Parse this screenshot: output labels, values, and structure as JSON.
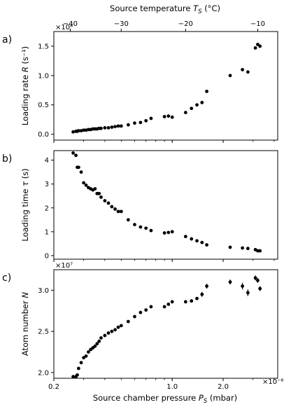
{
  "chart_data": {
    "type": "scatter",
    "x_scale": "log",
    "x_unit_exponent": "×10⁻⁶",
    "xlabel": "Source chamber pressure P_S (mbar)",
    "xlim": [
      0.2,
      4.2
    ],
    "x_tick_values": [
      0.2,
      1.0,
      2.0
    ],
    "x_tick_labels": [
      "0.2",
      "1.0",
      "2.0"
    ],
    "top_axis": {
      "label": "Source temperature T_S (°C)",
      "tick_labels": [
        "−40",
        "−30",
        "−20",
        "−10"
      ],
      "tick_positions_in_pressure": [
        0.25,
        0.5,
        1.2,
        3.2
      ]
    },
    "x_values": [
      0.26,
      0.27,
      0.275,
      0.28,
      0.29,
      0.3,
      0.31,
      0.32,
      0.33,
      0.34,
      0.35,
      0.36,
      0.37,
      0.38,
      0.4,
      0.42,
      0.44,
      0.46,
      0.48,
      0.5,
      0.55,
      0.6,
      0.65,
      0.7,
      0.75,
      0.9,
      0.95,
      1.0,
      1.2,
      1.3,
      1.4,
      1.5,
      1.6,
      2.2,
      2.6,
      2.8,
      3.1,
      3.2,
      3.3
    ],
    "panels": [
      {
        "letter": "a)",
        "ylabel": "Loading rate R (s⁻¹)",
        "y_unit_exponent": "×10⁸",
        "ylim": [
          -0.1,
          1.75
        ],
        "y_ticks": [
          0.0,
          0.5,
          1.0,
          1.5
        ],
        "y_tick_labels": [
          "0.0",
          "0.5",
          "1.0",
          "1.5"
        ],
        "values": [
          0.04,
          0.05,
          0.05,
          0.06,
          0.06,
          0.07,
          0.07,
          0.08,
          0.08,
          0.09,
          0.09,
          0.09,
          0.1,
          0.1,
          0.11,
          0.11,
          0.12,
          0.13,
          0.14,
          0.14,
          0.16,
          0.19,
          0.2,
          0.23,
          0.27,
          0.3,
          0.31,
          0.29,
          0.37,
          0.44,
          0.5,
          0.54,
          0.73,
          1.0,
          1.1,
          1.06,
          1.47,
          1.53,
          1.5
        ],
        "errors": null
      },
      {
        "letter": "b)",
        "ylabel": "Loading time τ (s)",
        "y_unit_exponent": "",
        "ylim": [
          -0.15,
          4.4
        ],
        "y_ticks": [
          0,
          1,
          2,
          3,
          4
        ],
        "y_tick_labels": [
          "0",
          "1",
          "2",
          "3",
          "4"
        ],
        "values": [
          4.3,
          4.2,
          3.7,
          3.7,
          3.5,
          3.05,
          2.95,
          2.85,
          2.8,
          2.75,
          2.8,
          2.6,
          2.6,
          2.45,
          2.3,
          2.2,
          2.05,
          1.95,
          1.85,
          1.85,
          1.5,
          1.3,
          1.2,
          1.15,
          1.05,
          0.95,
          0.97,
          1.0,
          0.8,
          0.7,
          0.62,
          0.55,
          0.45,
          0.35,
          0.32,
          0.3,
          0.25,
          0.2,
          0.2
        ],
        "errors": null
      },
      {
        "letter": "c)",
        "ylabel": "Atom number N",
        "y_unit_exponent": "×10⁷",
        "ylim": [
          1.93,
          3.25
        ],
        "y_ticks": [
          2.0,
          2.5,
          3.0
        ],
        "y_tick_labels": [
          "2.0",
          "2.5",
          "3.0"
        ],
        "values": [
          1.95,
          1.95,
          1.97,
          2.05,
          2.12,
          2.18,
          2.2,
          2.25,
          2.28,
          2.3,
          2.32,
          2.35,
          2.38,
          2.42,
          2.45,
          2.48,
          2.5,
          2.52,
          2.55,
          2.57,
          2.62,
          2.68,
          2.73,
          2.76,
          2.8,
          2.8,
          2.83,
          2.86,
          2.86,
          2.87,
          2.9,
          2.95,
          3.05,
          3.1,
          3.05,
          2.97,
          3.15,
          3.12,
          3.02
        ],
        "errors": [
          0.01,
          0.01,
          0.01,
          0.01,
          0.01,
          0.01,
          0.01,
          0.01,
          0.01,
          0.01,
          0.01,
          0.01,
          0.01,
          0.01,
          0.01,
          0.01,
          0.01,
          0.01,
          0.01,
          0.01,
          0.01,
          0.01,
          0.01,
          0.01,
          0.02,
          0.02,
          0.02,
          0.02,
          0.02,
          0.02,
          0.02,
          0.03,
          0.03,
          0.03,
          0.04,
          0.04,
          0.03,
          0.03,
          0.03
        ]
      }
    ]
  }
}
